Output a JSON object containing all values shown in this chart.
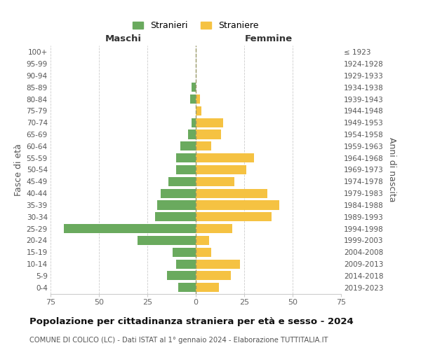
{
  "age_groups": [
    "0-4",
    "5-9",
    "10-14",
    "15-19",
    "20-24",
    "25-29",
    "30-34",
    "35-39",
    "40-44",
    "45-49",
    "50-54",
    "55-59",
    "60-64",
    "65-69",
    "70-74",
    "75-79",
    "80-84",
    "85-89",
    "90-94",
    "95-99",
    "100+"
  ],
  "birth_years": [
    "2019-2023",
    "2014-2018",
    "2009-2013",
    "2004-2008",
    "1999-2003",
    "1994-1998",
    "1989-1993",
    "1984-1988",
    "1979-1983",
    "1974-1978",
    "1969-1973",
    "1964-1968",
    "1959-1963",
    "1954-1958",
    "1949-1953",
    "1944-1948",
    "1939-1943",
    "1934-1938",
    "1929-1933",
    "1924-1928",
    "≤ 1923"
  ],
  "maschi": [
    9,
    15,
    10,
    12,
    30,
    68,
    21,
    20,
    18,
    14,
    10,
    10,
    8,
    4,
    2,
    0,
    3,
    2,
    0,
    0,
    0
  ],
  "femmine": [
    12,
    18,
    23,
    8,
    7,
    19,
    39,
    43,
    37,
    20,
    26,
    30,
    8,
    13,
    14,
    3,
    2,
    0,
    0,
    0,
    0
  ],
  "maschi_color": "#6aaa5e",
  "femmine_color": "#f5c242",
  "grid_color": "#cccccc",
  "center_line_color": "#999966",
  "title": "Popolazione per cittadinanza straniera per età e sesso - 2024",
  "subtitle": "COMUNE DI COLICO (LC) - Dati ISTAT al 1° gennaio 2024 - Elaborazione TUTTITALIA.IT",
  "xlabel_left": "Maschi",
  "xlabel_right": "Femmine",
  "ylabel_left": "Fasce di età",
  "ylabel_right": "Anni di nascita",
  "legend_maschi": "Stranieri",
  "legend_femmine": "Straniere",
  "xlim": 75
}
